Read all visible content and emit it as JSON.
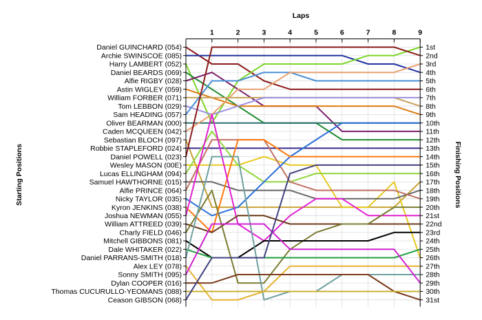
{
  "chart_data": {
    "type": "line",
    "title": "",
    "xlabel": "Laps",
    "ylabel_left": "Starting Positions",
    "ylabel_right": "Finishing Positions",
    "x": [
      0,
      1,
      2,
      3,
      4,
      5,
      6,
      7,
      8,
      9
    ],
    "x_tick_labels": [
      "1",
      "2",
      "3",
      "4",
      "5",
      "6",
      "7",
      "8",
      "9"
    ],
    "finishing_labels": [
      "1st",
      "2nd",
      "3rd",
      "4th",
      "5th",
      "6th",
      "7th",
      "8th",
      "9th",
      "10th",
      "11th",
      "12th",
      "13th",
      "14th",
      "15th",
      "16th",
      "17th",
      "18th",
      "19th",
      "20th",
      "21st",
      "22nd",
      "23rd",
      "24th",
      "25th",
      "26th",
      "27th",
      "28th",
      "29th",
      "30th",
      "31st"
    ],
    "ylim": [
      1,
      31
    ],
    "grid": true,
    "series": [
      {
        "name": "Daniel GUINCHARD (054)",
        "color": "#8b1a1a",
        "positions": [
          1,
          3,
          3,
          5,
          6,
          6,
          6,
          6,
          6,
          6
        ]
      },
      {
        "name": "Archie SWINSCOE (085)",
        "color": "#2233a0",
        "positions": [
          2,
          2,
          2,
          2,
          2,
          2,
          2,
          3,
          3,
          4
        ]
      },
      {
        "name": "Harry LAMBERT (052)",
        "color": "#7cd629",
        "positions": [
          3,
          10,
          5,
          3,
          3,
          3,
          3,
          2,
          2,
          1
        ]
      },
      {
        "name": "Daniel BEARDS (069)",
        "color": "#1e8a2e",
        "positions": [
          4,
          6,
          8,
          10,
          10,
          10,
          12,
          12,
          12,
          12
        ]
      },
      {
        "name": "Alfie RIGBY (028)",
        "color": "#7a1e6a",
        "positions": [
          5,
          4,
          6,
          8,
          8,
          8,
          11,
          11,
          11,
          11
        ]
      },
      {
        "name": "Astin WIGLEY (059)",
        "color": "#e07a10",
        "positions": [
          6,
          7,
          8,
          8,
          8,
          8,
          8,
          8,
          8,
          9
        ]
      },
      {
        "name": "William FORBER (071)",
        "color": "#c9a15a",
        "positions": [
          7,
          7,
          7,
          7,
          7,
          7,
          7,
          7,
          7,
          8
        ]
      },
      {
        "name": "Tom LEBBON (029)",
        "color": "#9b8fe0",
        "positions": [
          8,
          9,
          8,
          7,
          7,
          7,
          7,
          7,
          7,
          7
        ]
      },
      {
        "name": "Sam HEADING (057)",
        "color": "#4a8fd6",
        "positions": [
          9,
          5,
          5,
          4,
          4,
          5,
          5,
          5,
          5,
          5
        ]
      },
      {
        "name": "Oliver BEARMAN (000)",
        "color": "#2a6f6f",
        "positions": [
          10,
          10,
          10,
          10,
          10,
          10,
          10,
          10,
          10,
          10
        ]
      },
      {
        "name": "Caden MCQUEEN (042)",
        "color": "#e8a070",
        "positions": [
          11,
          9,
          6,
          6,
          4,
          4,
          4,
          4,
          4,
          3
        ]
      },
      {
        "name": "Sebastian BLOCH (097)",
        "color": "#c8a232",
        "positions": [
          12,
          20,
          20,
          20,
          20,
          20,
          20,
          20,
          20,
          17
        ]
      },
      {
        "name": "Robbie STAPLEFORD (024)",
        "color": "#3a2a90",
        "positions": [
          13,
          13,
          13,
          13,
          13,
          13,
          13,
          13,
          13,
          13
        ]
      },
      {
        "name": "Daniel POWELL (023)",
        "color": "#8b1a1a",
        "positions": [
          14,
          1,
          1,
          1,
          1,
          1,
          1,
          1,
          1,
          2
        ]
      },
      {
        "name": "Wesley MASON (00E)",
        "color": "#e8c820",
        "positions": [
          15,
          15,
          15,
          14,
          15,
          15,
          20,
          20,
          17,
          26
        ]
      },
      {
        "name": "Lucas ELLINGHAM (094)",
        "color": "#8fd639",
        "positions": [
          16,
          11,
          15,
          17,
          17,
          16,
          16,
          16,
          16,
          16
        ]
      },
      {
        "name": "Samuel HAWTHORNE (015)",
        "color": "#666666",
        "positions": [
          17,
          17,
          18,
          18,
          18,
          19,
          19,
          19,
          19,
          18
        ]
      },
      {
        "name": "Alfie PRINCE (064)",
        "color": "#c07060",
        "positions": [
          18,
          12,
          12,
          12,
          17,
          18,
          18,
          18,
          18,
          19
        ]
      },
      {
        "name": "Nicky TAYLOR (035)",
        "color": "#2a6fd6",
        "positions": [
          19,
          21,
          20,
          17,
          14,
          12,
          10,
          10,
          10,
          10
        ]
      },
      {
        "name": "Kyron JENKINS (038)",
        "color": "#ff7a10",
        "positions": [
          20,
          23,
          12,
          12,
          14,
          14,
          14,
          14,
          14,
          14
        ]
      },
      {
        "name": "Joshua NEWMAN (055)",
        "color": "#e020d0",
        "positions": [
          21,
          9,
          22,
          24,
          21,
          19,
          19,
          21,
          21,
          21
        ]
      },
      {
        "name": "William ATTREED (039)",
        "color": "#6a3a1a",
        "positions": [
          22,
          23,
          21,
          21,
          22,
          22,
          22,
          22,
          22,
          22
        ]
      },
      {
        "name": "Charly FIELD (046)",
        "color": "#7a7a30",
        "positions": [
          23,
          18,
          29,
          29,
          25,
          23,
          22,
          22,
          20,
          20
        ]
      },
      {
        "name": "Mitchell GIBBONS (081)",
        "color": "#000000",
        "positions": [
          24,
          26,
          26,
          24,
          24,
          24,
          24,
          24,
          23,
          23
        ]
      },
      {
        "name": "Dale WHITAKER (022)",
        "color": "#20a040",
        "positions": [
          25,
          26,
          26,
          26,
          26,
          26,
          26,
          26,
          26,
          25
        ]
      },
      {
        "name": "Daniel PARRANS-SMITH (018)",
        "color": "#6fa0a0",
        "positions": [
          26,
          14,
          14,
          31,
          30,
          30,
          28,
          28,
          28,
          28
        ]
      },
      {
        "name": "Alex LEY (078)",
        "color": "#e8b030",
        "positions": [
          27,
          31,
          31,
          30,
          27,
          27,
          27,
          27,
          27,
          27
        ]
      },
      {
        "name": "Sonny SMITH (095)",
        "color": "#d020d0",
        "positions": [
          28,
          22,
          22,
          22,
          25,
          25,
          25,
          25,
          25,
          29
        ]
      },
      {
        "name": "Dylan COOPER (016)",
        "color": "#7a3a1a",
        "positions": [
          29,
          29,
          28,
          28,
          28,
          28,
          28,
          28,
          30,
          31
        ]
      },
      {
        "name": "Thomas CUCURULLO-YEOMANS (088)",
        "color": "#c8b030",
        "positions": [
          30,
          30,
          30,
          30,
          30,
          30,
          30,
          30,
          30,
          30
        ]
      },
      {
        "name": "Ceason GIBSON (068)",
        "color": "#404080",
        "positions": [
          31,
          26,
          26,
          26,
          16,
          15,
          15,
          15,
          15,
          15
        ]
      }
    ]
  }
}
